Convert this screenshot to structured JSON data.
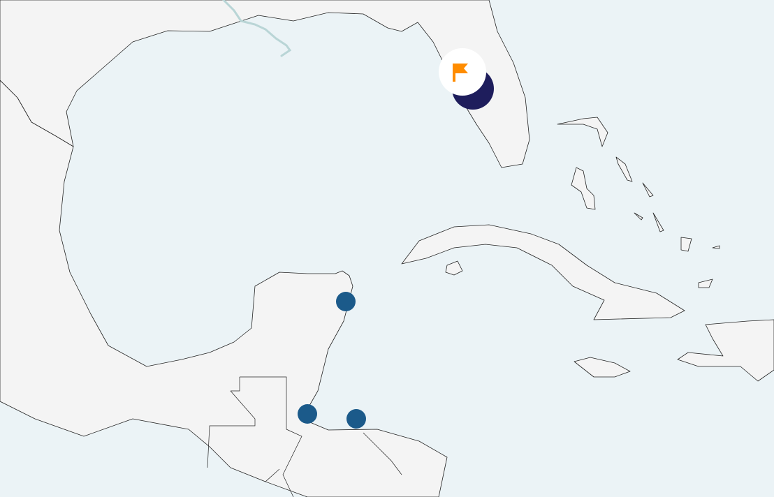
{
  "map": {
    "colors": {
      "water": "#ebf3f6",
      "land": "#f4f4f4",
      "coastline": "#222222",
      "river": "#b9d5d6"
    },
    "markers": [
      {
        "type": "point",
        "color": "#1b5a8a"
      },
      {
        "type": "point",
        "color": "#1b5a8a"
      },
      {
        "type": "point",
        "color": "#1b5a8a"
      }
    ],
    "cluster": {
      "color": "#1e1d5c",
      "flag_icon": "flag-icon",
      "flag_color": "#ff8c00",
      "badge_color": "#ffffff"
    }
  }
}
